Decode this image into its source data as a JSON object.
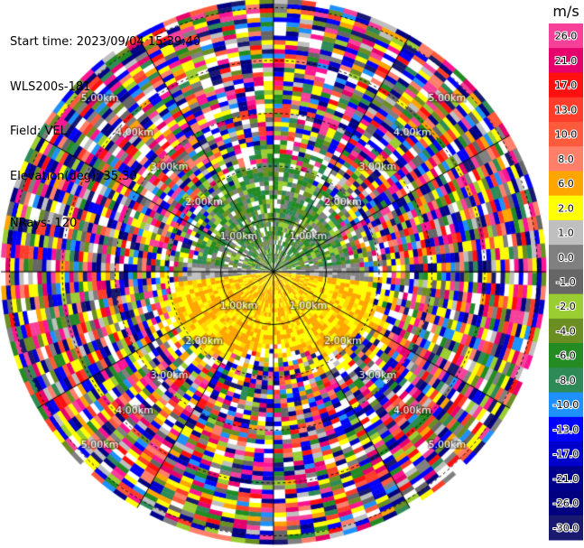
{
  "header": {
    "start_time": "Start time: 2023/09/04 15:39:40",
    "instrument": "WLS200s-181",
    "field": "Field: VEL",
    "elevation": "Elevation(deg): 35.30",
    "nrays": "NRays: 120"
  },
  "ppi": {
    "range_ring_labels": [
      "1.00km",
      "2.00km",
      "3.00km",
      "4.00km",
      "5.00km"
    ],
    "nrays": 120
  },
  "colorbar": {
    "unit": "m/s",
    "levels": [
      {
        "label": "26.0",
        "color": "#f7409a"
      },
      {
        "label": "21.0",
        "color": "#e6006b"
      },
      {
        "label": "17.0",
        "color": "#ff1010"
      },
      {
        "label": "13.0",
        "color": "#ff3d2a"
      },
      {
        "label": "10.0",
        "color": "#ff5a3c"
      },
      {
        "label": "8.0",
        "color": "#ff7f6a"
      },
      {
        "label": "6.0",
        "color": "#ffa500"
      },
      {
        "label": "2.0",
        "color": "#ffff00"
      },
      {
        "label": "1.0",
        "color": "#bfbfbf"
      },
      {
        "label": "0.0",
        "color": "#808080"
      },
      {
        "label": "-1.0",
        "color": "#666666"
      },
      {
        "label": "-2.0",
        "color": "#9acd32"
      },
      {
        "label": "-4.0",
        "color": "#6b8e23"
      },
      {
        "label": "-6.0",
        "color": "#228b22"
      },
      {
        "label": "-8.0",
        "color": "#2e8b57"
      },
      {
        "label": "-10.0",
        "color": "#1e90ff"
      },
      {
        "label": "-13.0",
        "color": "#0000ff"
      },
      {
        "label": "-17.0",
        "color": "#0000cd"
      },
      {
        "label": "-21.0",
        "color": "#00008b"
      },
      {
        "label": "-26.0",
        "color": "#000080"
      },
      {
        "label": "-30.0",
        "color": "#191970"
      }
    ]
  }
}
